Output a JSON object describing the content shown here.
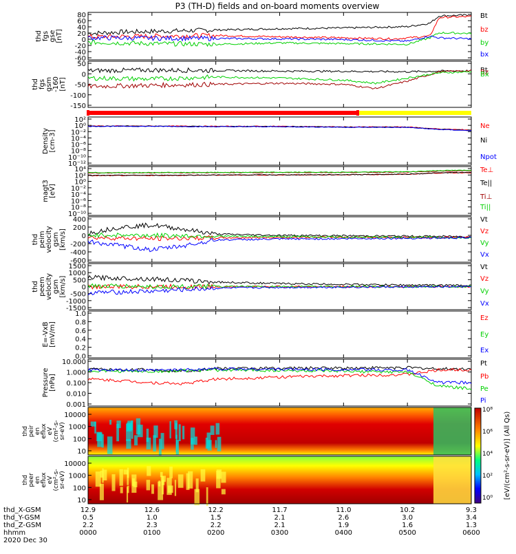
{
  "title": "P3 (TH-D) fields and on-board moments overview",
  "date_label": "2020 Dec 30",
  "colors": {
    "black": "#000000",
    "red": "#ff0000",
    "darkred": "#a00000",
    "green": "#00d000",
    "blue": "#0000ff",
    "yellow": "#ffff00"
  },
  "chart_data": {
    "type": "line",
    "x_time_labels": [
      "0000",
      "0100",
      "0200",
      "0300",
      "0400",
      "0500",
      "0600"
    ],
    "orbit_rows": [
      {
        "name": "thd_X-GSM",
        "values": [
          "12.9",
          "12.6",
          "12.2",
          "11.7",
          "11.0",
          "10.2",
          "9.3"
        ]
      },
      {
        "name": "thd_Y-GSM",
        "values": [
          "0.5",
          "1.0",
          "1.5",
          "2.1",
          "2.6",
          "3.0",
          "3.4"
        ]
      },
      {
        "name": "thd_Z-GSM",
        "values": [
          "2.2",
          "2.3",
          "2.2",
          "2.1",
          "1.9",
          "1.6",
          "1.3"
        ]
      },
      {
        "name": "hhmm",
        "values": [
          "0000",
          "0100",
          "0200",
          "0300",
          "0400",
          "0500",
          "0600"
        ]
      }
    ],
    "panels": [
      {
        "id": "fgs_gse",
        "ylabel": [
          "thd",
          "fgs",
          "gse",
          "[nT]"
        ],
        "scale": "linear",
        "ylim": [
          -60,
          80
        ],
        "ticks": [
          "80",
          "60",
          "40",
          "20",
          "0",
          "-20",
          "-40",
          "-60"
        ],
        "series": [
          {
            "name": "Bt",
            "color": "#000000",
            "x": [
              0,
              0.5,
              1,
              1.5,
              2,
              3,
              4,
              5,
              5.35,
              5.5,
              6
            ],
            "y": [
              18,
              22,
              24,
              26,
              28,
              32,
              34,
              38,
              48,
              70,
              72
            ]
          },
          {
            "name": "bz",
            "color": "#ff0000",
            "x": [
              0,
              1,
              2,
              3,
              4,
              4.8,
              5.35,
              5.5,
              6
            ],
            "y": [
              8,
              10,
              12,
              8,
              5,
              2,
              10,
              65,
              68
            ]
          },
          {
            "name": "by",
            "color": "#00d000",
            "x": [
              0,
              1,
              2,
              3,
              4,
              5,
              5.35,
              5.5,
              6
            ],
            "y": [
              -8,
              -12,
              -14,
              -10,
              -12,
              -14,
              5,
              20,
              18
            ]
          },
          {
            "name": "bx",
            "color": "#0000ff",
            "x": [
              0,
              1,
              2,
              3,
              4,
              5,
              5.35,
              5.5,
              6
            ],
            "y": [
              5,
              4,
              3,
              2,
              0,
              -5,
              10,
              5,
              2
            ]
          }
        ]
      },
      {
        "id": "fgs_gsm",
        "ylabel": [
          "thd",
          "fgs",
          "gsm",
          "-160",
          "[nT]"
        ],
        "scale": "linear",
        "ylim": [
          -170,
          50
        ],
        "ticks": [
          "50",
          "0",
          "-50",
          "-100",
          "-150"
        ],
        "series": [
          {
            "name": "Bt",
            "color": "#000000",
            "x": [
              0,
              1,
              2,
              3,
              4,
              5,
              5.5,
              6
            ],
            "y": [
              5,
              8,
              6,
              3,
              2,
              0,
              3,
              5
            ]
          },
          {
            "name": "Bz",
            "color": "#a00000",
            "x": [
              0,
              1,
              2,
              3,
              4,
              4.5,
              5,
              5.5,
              6
            ],
            "y": [
              -70,
              -65,
              -60,
              -55,
              -60,
              -80,
              -45,
              0,
              5
            ]
          },
          {
            "name": "Bx",
            "color": "#00d000",
            "x": [
              0,
              1,
              2,
              3,
              4,
              4.5,
              5,
              5.5,
              6
            ],
            "y": [
              -30,
              -35,
              -25,
              -30,
              -40,
              -55,
              -30,
              -5,
              0
            ]
          }
        ]
      },
      {
        "id": "density",
        "ylabel": [
          "Density",
          "[cm-3]"
        ],
        "scale": "log",
        "ylim": [
          1e-13,
          1000
        ],
        "ticks": [
          "10²",
          "10⁰",
          "10⁻²",
          "10⁻⁴",
          "10⁻⁶",
          "10⁻⁸",
          "10⁻¹⁰",
          "10⁻¹²"
        ],
        "series": [
          {
            "name": "Ne",
            "color": "#ff0000",
            "x": [
              0,
              1,
              2,
              3,
              4,
              5,
              5.5,
              6
            ],
            "y": [
              1,
              1,
              0.8,
              0.8,
              0.5,
              0.5,
              0.1,
              0.05
            ]
          },
          {
            "name": "Ni",
            "color": "#000000",
            "x": [
              0,
              1,
              2,
              3,
              4,
              5,
              5.5,
              6
            ],
            "y": [
              0.9,
              0.9,
              0.7,
              0.7,
              0.45,
              0.4,
              0.08,
              0.04
            ]
          },
          {
            "name": "Npot",
            "color": "#0000ff",
            "x": [
              0,
              1,
              2,
              3,
              4,
              5,
              5.5,
              6
            ],
            "y": [
              0.8,
              0.8,
              0.6,
              0.6,
              0.4,
              0.35,
              0.07,
              0.03
            ]
          }
        ]
      },
      {
        "id": "temp",
        "ylabel": [
          "magt3",
          "[eV]"
        ],
        "scale": "log",
        "ylim": [
          1e-11,
          100000
        ],
        "ticks": [
          "10⁴",
          "10²",
          "10⁰",
          "10⁻²",
          "10⁻⁴",
          "10⁻⁶",
          "10⁻⁸",
          "10⁻¹⁰"
        ],
        "series": [
          {
            "name": "Te⊥",
            "color": "#ff0000",
            "x": [
              0,
              2,
              4,
              5,
              5.5,
              6
            ],
            "y": [
              100,
              150,
              200,
              300,
              800,
              1000
            ]
          },
          {
            "name": "Te||",
            "color": "#000000",
            "x": [
              0,
              2,
              4,
              5,
              5.5,
              6
            ],
            "y": [
              120,
              170,
              220,
              320,
              900,
              1200
            ]
          },
          {
            "name": "Ti⊥",
            "color": "#a00000",
            "x": [
              0,
              2,
              4,
              5,
              5.5,
              6
            ],
            "y": [
              800,
              1000,
              1200,
              1500,
              3000,
              4000
            ]
          },
          {
            "name": "Ti||",
            "color": "#00d000",
            "x": [
              0,
              2,
              4,
              5,
              5.5,
              6
            ],
            "y": [
              1000,
              1200,
              1500,
              2000,
              5000,
              6000
            ]
          }
        ]
      },
      {
        "id": "vi",
        "ylabel": [
          "thd",
          "peim",
          "velocity",
          "gsm",
          "[km/s]"
        ],
        "scale": "linear",
        "ylim": [
          -600,
          500
        ],
        "ticks": [
          "400",
          "200",
          "0",
          "-200",
          "-400",
          "-600"
        ],
        "series": [
          {
            "name": "Vt",
            "color": "#000000",
            "x": [
              0,
              0.5,
              1,
              1.5,
              2,
              3,
              4,
              5,
              6
            ],
            "y": [
              100,
              250,
              300,
              200,
              80,
              50,
              40,
              30,
              20
            ]
          },
          {
            "name": "Vz",
            "color": "#ff0000",
            "x": [
              0,
              1,
              2,
              3,
              4,
              5,
              6
            ],
            "y": [
              0,
              -30,
              -10,
              0,
              5,
              0,
              0
            ]
          },
          {
            "name": "Vy",
            "color": "#00d000",
            "x": [
              0,
              1,
              2,
              3,
              4,
              5,
              6
            ],
            "y": [
              60,
              50,
              30,
              20,
              10,
              0,
              -10
            ]
          },
          {
            "name": "Vx",
            "color": "#0000ff",
            "x": [
              0,
              0.5,
              1,
              1.5,
              2,
              3,
              4,
              5,
              6
            ],
            "y": [
              -100,
              -200,
              -300,
              -200,
              -60,
              -40,
              -30,
              -20,
              -10
            ]
          }
        ]
      },
      {
        "id": "ve",
        "ylabel": [
          "thd",
          "peem",
          "velocity",
          "gsm",
          "[km/s]"
        ],
        "scale": "linear",
        "ylim": [
          -1500,
          1500
        ],
        "ticks": [
          "1500",
          "1000",
          "500",
          "0",
          "-500",
          "-1000",
          "-1500"
        ],
        "series": [
          {
            "name": "Vt",
            "color": "#000000",
            "x": [
              0,
              1,
              2,
              3,
              4,
              5,
              6
            ],
            "y": [
              600,
              500,
              300,
              200,
              150,
              100,
              80
            ]
          },
          {
            "name": "Vz",
            "color": "#ff0000",
            "x": [
              0,
              1,
              2,
              3,
              4,
              5,
              6
            ],
            "y": [
              0,
              0,
              0,
              0,
              0,
              0,
              0
            ]
          },
          {
            "name": "Vy",
            "color": "#00d000",
            "x": [
              0,
              1,
              2,
              3,
              4,
              5,
              6
            ],
            "y": [
              50,
              0,
              0,
              0,
              0,
              0,
              0
            ]
          },
          {
            "name": "Vx",
            "color": "#0000ff",
            "x": [
              0,
              1,
              2,
              3,
              4,
              5,
              6
            ],
            "y": [
              -400,
              -300,
              -100,
              -50,
              -30,
              -20,
              -10
            ]
          }
        ]
      },
      {
        "id": "efield",
        "ylabel": [
          "E=-VxB",
          "[mV/m]"
        ],
        "scale": "linear",
        "ylim": [
          0,
          1
        ],
        "ticks": [
          "1.0",
          "0.8",
          "0.6",
          "0.4",
          "0.2",
          "0.0"
        ],
        "series": [
          {
            "name": "Ez",
            "color": "#ff0000",
            "x": [],
            "y": []
          },
          {
            "name": "Ey",
            "color": "#00d000",
            "x": [],
            "y": []
          },
          {
            "name": "Ex",
            "color": "#0000ff",
            "x": [],
            "y": []
          }
        ]
      },
      {
        "id": "pressure",
        "ylabel": [
          "Pressure",
          "[nPa]"
        ],
        "scale": "log",
        "ylim": [
          0.001,
          10
        ],
        "ticks": [
          "10.000",
          "1.000",
          "0.100",
          "0.010",
          "0.001"
        ],
        "series": [
          {
            "name": "Pt",
            "color": "#000000",
            "x": [
              0,
              0.5,
              1,
              1.5,
              2,
              3,
              4,
              5,
              5.5,
              6
            ],
            "y": [
              1.5,
              1.2,
              1.3,
              1.0,
              1.6,
              1.7,
              1.8,
              1.9,
              1.5,
              1.5
            ]
          },
          {
            "name": "Pb",
            "color": "#ff0000",
            "x": [
              0,
              0.5,
              1,
              1.5,
              2,
              3,
              4,
              5,
              5.5,
              6
            ],
            "y": [
              0.2,
              0.15,
              0.1,
              0.08,
              0.2,
              0.3,
              0.4,
              0.5,
              1.2,
              1.3
            ]
          },
          {
            "name": "Pe",
            "color": "#00d000",
            "x": [
              0,
              1,
              2,
              3,
              4,
              5,
              5.5,
              6
            ],
            "y": [
              1.0,
              0.9,
              1.2,
              1.1,
              0.9,
              0.8,
              0.05,
              0.03
            ]
          },
          {
            "name": "Pi",
            "color": "#0000ff",
            "x": [
              0,
              1,
              2,
              3,
              4,
              5,
              5.5,
              6
            ],
            "y": [
              1.2,
              1.1,
              1.5,
              1.4,
              1.3,
              1.2,
              0.1,
              0.1
            ]
          }
        ]
      }
    ],
    "spectrograms": [
      {
        "id": "peir",
        "ylabel": [
          "thd",
          "peir",
          "en",
          "eflux",
          "eV",
          "(cm²-s-",
          "sr-eV)"
        ],
        "ticks": [
          "10000",
          "1000",
          "100",
          "10"
        ]
      },
      {
        "id": "peer",
        "ylabel": [
          "thd",
          "peer",
          "en",
          "eflux",
          "eV",
          "(cm²-s-",
          "sr-eV)"
        ],
        "ticks": [
          "10000",
          "1000",
          "100",
          "10"
        ]
      }
    ],
    "colorbar": {
      "label": "[eV/(cm²-s-sr-eV)] (All Qs)",
      "ticks": [
        "10⁸",
        "10⁶",
        "10⁴",
        "10²",
        "10⁰"
      ]
    }
  }
}
